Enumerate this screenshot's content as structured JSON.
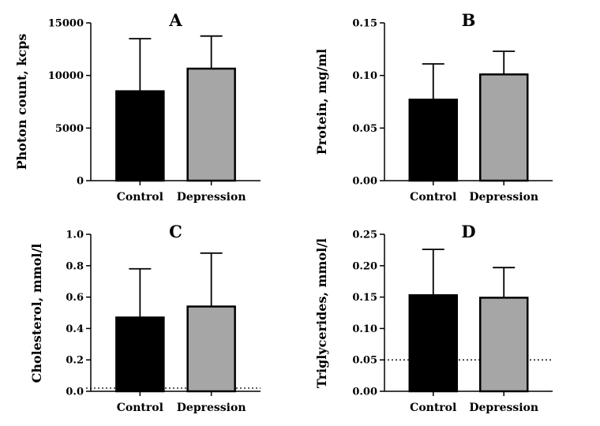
{
  "chart_data": [
    {
      "type": "bar",
      "title": "A",
      "xlabel": "",
      "ylabel": "Photon count, kcps",
      "ylim": [
        0,
        15000
      ],
      "yticks": [
        "0",
        "5000",
        "10000",
        "15000"
      ],
      "categories": [
        "Control",
        "Depression"
      ],
      "values": [
        8500,
        10650
      ],
      "errors": [
        5000,
        3100
      ],
      "bar_colors": [
        "#000000",
        "#a6a6a6"
      ],
      "reference_line": null
    },
    {
      "type": "bar",
      "title": "B",
      "xlabel": "",
      "ylabel": "Protein, mg/ml",
      "ylim": [
        0,
        0.15
      ],
      "yticks": [
        "0.00",
        "0.05",
        "0.10",
        "0.15"
      ],
      "categories": [
        "Control",
        "Depression"
      ],
      "values": [
        0.077,
        0.101
      ],
      "errors": [
        0.034,
        0.022
      ],
      "bar_colors": [
        "#000000",
        "#a6a6a6"
      ],
      "reference_line": null
    },
    {
      "type": "bar",
      "title": "C",
      "xlabel": "",
      "ylabel": "Cholesterol, mmol/l",
      "ylim": [
        0,
        1.0
      ],
      "yticks": [
        "0.0",
        "0.2",
        "0.4",
        "0.6",
        "0.8",
        "1.0"
      ],
      "categories": [
        "Control",
        "Depression"
      ],
      "values": [
        0.47,
        0.54
      ],
      "errors": [
        0.31,
        0.34
      ],
      "bar_colors": [
        "#000000",
        "#a6a6a6"
      ],
      "reference_line": 0.02
    },
    {
      "type": "bar",
      "title": "D",
      "xlabel": "",
      "ylabel": "Triglycerides, mmol/l",
      "ylim": [
        0,
        0.25
      ],
      "yticks": [
        "0.00",
        "0.05",
        "0.10",
        "0.15",
        "0.20",
        "0.25"
      ],
      "categories": [
        "Control",
        "Depression"
      ],
      "values": [
        0.153,
        0.149
      ],
      "errors": [
        0.073,
        0.048
      ],
      "bar_colors": [
        "#000000",
        "#a6a6a6"
      ],
      "reference_line": 0.05
    }
  ]
}
